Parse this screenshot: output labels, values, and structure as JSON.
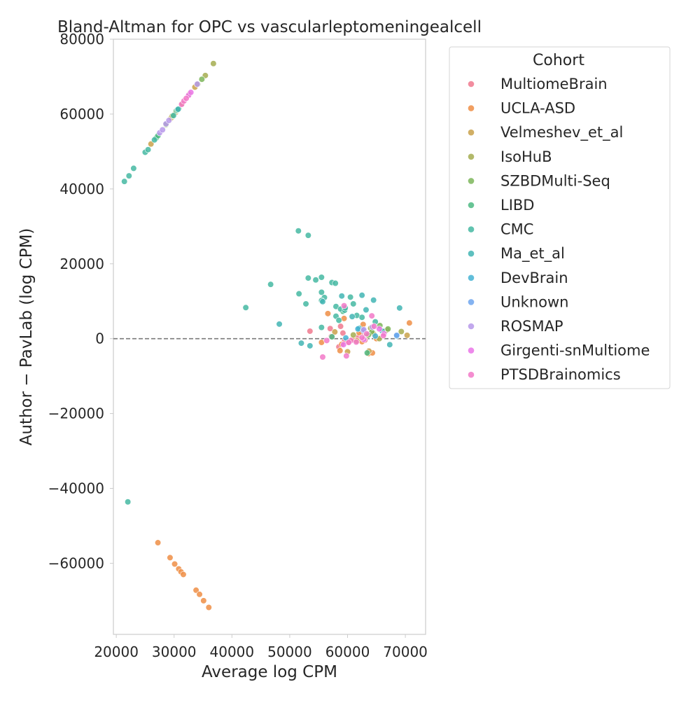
{
  "chart_data": {
    "type": "scatter",
    "title": "Bland-Altman for OPC vs vascularleptomeningealcell",
    "xlabel": "Average log CPM",
    "ylabel": "Author − PavLab (log CPM)",
    "xlim": [
      19500,
      73500
    ],
    "ylim": [
      -79000,
      80000
    ],
    "x_ticks": [
      20000,
      30000,
      40000,
      50000,
      60000,
      70000
    ],
    "x_tick_labels": [
      "20000",
      "30000",
      "40000",
      "50000",
      "60000",
      "70000"
    ],
    "y_ticks": [
      80000,
      60000,
      40000,
      20000,
      0,
      -20000,
      -40000,
      -60000
    ],
    "y_tick_labels": [
      "80000",
      "60000",
      "40000",
      "20000",
      "0",
      "−20000",
      "−40000",
      "−60000"
    ],
    "reference_line": {
      "y": 0,
      "style": "dashed"
    },
    "grid": false,
    "legend": {
      "title": "Cohort",
      "placement": "outside-right-top",
      "entries": [
        {
          "name": "MultiomeBrain",
          "color": "#f0798e"
        },
        {
          "name": "UCLA-ASD",
          "color": "#ee8e45"
        },
        {
          "name": "Velmeshev_et_al",
          "color": "#c9a14a"
        },
        {
          "name": "IsoHuB",
          "color": "#a4ad50"
        },
        {
          "name": "SZBDMulti-Seq",
          "color": "#7db65a"
        },
        {
          "name": "LIBD",
          "color": "#4dba82"
        },
        {
          "name": "CMC",
          "color": "#45b8a2"
        },
        {
          "name": "Ma_et_al",
          "color": "#42b5b4"
        },
        {
          "name": "DevBrain",
          "color": "#45b3d3"
        },
        {
          "name": "Unknown",
          "color": "#6fa6ef"
        },
        {
          "name": "ROSMAP",
          "color": "#b799ea"
        },
        {
          "name": "Girgenti-snMultiome",
          "color": "#ea74e8"
        },
        {
          "name": "PTSDBrainomics",
          "color": "#f279c8"
        }
      ]
    },
    "series": [
      {
        "name": "MultiomeBrain",
        "points": [
          [
            53500,
            2000
          ],
          [
            57000,
            2700
          ],
          [
            58800,
            3300
          ],
          [
            59200,
            1500
          ],
          [
            61800,
            300
          ],
          [
            62500,
            1800
          ],
          [
            59500,
            -600
          ],
          [
            58500,
            -2200
          ],
          [
            63000,
            -400
          ],
          [
            60200,
            -1000
          ],
          [
            57200,
            600
          ]
        ]
      },
      {
        "name": "UCLA-ASD",
        "points": [
          [
            27200,
            -54500
          ],
          [
            29300,
            -58500
          ],
          [
            30100,
            -60200
          ],
          [
            30800,
            -61500
          ],
          [
            31200,
            -62300
          ],
          [
            31600,
            -63000
          ],
          [
            33800,
            -67200
          ],
          [
            34400,
            -68300
          ],
          [
            35100,
            -70000
          ],
          [
            36000,
            -71800
          ],
          [
            55500,
            -1000
          ],
          [
            58700,
            -3200
          ],
          [
            63600,
            -4000
          ],
          [
            64300,
            -3800
          ],
          [
            70700,
            4200
          ],
          [
            62700,
            3800
          ],
          [
            60800,
            -200
          ],
          [
            56600,
            6700
          ],
          [
            62500,
            -800
          ],
          [
            59400,
            5400
          ],
          [
            65000,
            0
          ],
          [
            59000,
            -1500
          ],
          [
            62000,
            1600
          ]
        ]
      },
      {
        "name": "Velmeshev_et_al",
        "points": [
          [
            26000,
            52000
          ],
          [
            29500,
            59000
          ],
          [
            30300,
            60500
          ],
          [
            31400,
            62800
          ],
          [
            32600,
            65300
          ],
          [
            33600,
            67200
          ],
          [
            70300,
            900
          ],
          [
            63200,
            700
          ],
          [
            61600,
            -600
          ],
          [
            57800,
            1800
          ],
          [
            64500,
            1300
          ],
          [
            66800,
            2300
          ],
          [
            60000,
            -3500
          ],
          [
            63700,
            -3300
          ]
        ]
      },
      {
        "name": "IsoHuB",
        "points": [
          [
            36800,
            73500
          ],
          [
            35400,
            70300
          ],
          [
            34100,
            68000
          ],
          [
            29700,
            59500
          ],
          [
            65500,
            0
          ],
          [
            66500,
            2000
          ],
          [
            69300,
            1900
          ],
          [
            61000,
            1000
          ],
          [
            64000,
            2800
          ]
        ]
      },
      {
        "name": "SZBDMulti-Seq",
        "points": [
          [
            34800,
            69300
          ],
          [
            30800,
            61400
          ],
          [
            28600,
            57200
          ],
          [
            65600,
            3500
          ],
          [
            67000,
            2600
          ],
          [
            64200,
            1800
          ],
          [
            63600,
            1000
          ]
        ]
      },
      {
        "name": "LIBD",
        "points": [
          [
            26900,
            53600
          ],
          [
            27200,
            54200
          ],
          [
            30400,
            60900
          ],
          [
            30600,
            61100
          ],
          [
            59200,
            7300
          ],
          [
            63400,
            -3800
          ],
          [
            57300,
            500
          ]
        ]
      },
      {
        "name": "CMC",
        "points": [
          [
            21400,
            42000
          ],
          [
            22200,
            43500
          ],
          [
            23000,
            45500
          ],
          [
            25000,
            49800
          ],
          [
            25500,
            50500
          ],
          [
            26600,
            53100
          ],
          [
            29900,
            59600
          ],
          [
            51500,
            28800
          ],
          [
            53200,
            27600
          ],
          [
            53200,
            16200
          ],
          [
            54500,
            15700
          ],
          [
            55500,
            16400
          ],
          [
            57300,
            15000
          ],
          [
            57900,
            14800
          ],
          [
            46700,
            14500
          ],
          [
            51600,
            12000
          ],
          [
            55500,
            12400
          ],
          [
            56000,
            11000
          ],
          [
            60500,
            11100
          ],
          [
            42400,
            8300
          ],
          [
            52800,
            9300
          ],
          [
            55500,
            10200
          ],
          [
            58000,
            8600
          ],
          [
            61000,
            9300
          ],
          [
            58800,
            7900
          ],
          [
            59500,
            7600
          ],
          [
            59600,
            8200
          ],
          [
            64800,
            4500
          ],
          [
            58000,
            6000
          ],
          [
            61600,
            6200
          ],
          [
            62500,
            5700
          ],
          [
            55500,
            3000
          ],
          [
            22000,
            -43600
          ],
          [
            58500,
            4900
          ]
        ]
      },
      {
        "name": "Ma_et_al",
        "points": [
          [
            48200,
            3900
          ],
          [
            52000,
            -1200
          ],
          [
            53500,
            -1900
          ],
          [
            62500,
            11600
          ],
          [
            64500,
            10300
          ],
          [
            59000,
            11400
          ],
          [
            63200,
            7700
          ],
          [
            60800,
            5900
          ],
          [
            62000,
            2800
          ],
          [
            66000,
            2000
          ],
          [
            67300,
            -1600
          ],
          [
            69000,
            8200
          ],
          [
            30700,
            61300
          ],
          [
            55700,
            9900
          ]
        ]
      },
      {
        "name": "DevBrain",
        "points": [
          [
            61800,
            2600
          ],
          [
            64800,
            700
          ],
          [
            68500,
            700
          ],
          [
            59700,
            200
          ]
        ]
      },
      {
        "name": "Unknown",
        "points": [
          [
            68500,
            900
          ],
          [
            62700,
            2200
          ]
        ]
      },
      {
        "name": "ROSMAP",
        "points": [
          [
            27500,
            55000
          ],
          [
            28000,
            55800
          ],
          [
            28600,
            57400
          ],
          [
            29100,
            58300
          ],
          [
            34000,
            68000
          ],
          [
            62800,
            2400
          ],
          [
            64300,
            3100
          ]
        ]
      },
      {
        "name": "Girgenti-snMultiome",
        "points": [
          [
            32500,
            65000
          ],
          [
            32900,
            65800
          ],
          [
            62800,
            -200
          ],
          [
            65500,
            2600
          ],
          [
            59300,
            -1600
          ],
          [
            66300,
            1300
          ]
        ]
      },
      {
        "name": "PTSDBrainomics",
        "points": [
          [
            31300,
            62600
          ],
          [
            31700,
            63500
          ],
          [
            32100,
            64200
          ],
          [
            55700,
            -4900
          ],
          [
            59800,
            -4600
          ],
          [
            64200,
            6100
          ],
          [
            59400,
            8800
          ],
          [
            56400,
            -500
          ],
          [
            60600,
            -500
          ],
          [
            61500,
            -900
          ],
          [
            62500,
            300
          ],
          [
            64600,
            3300
          ],
          [
            66200,
            800
          ],
          [
            63300,
            1300
          ],
          [
            60200,
            -1000
          ]
        ]
      }
    ]
  }
}
